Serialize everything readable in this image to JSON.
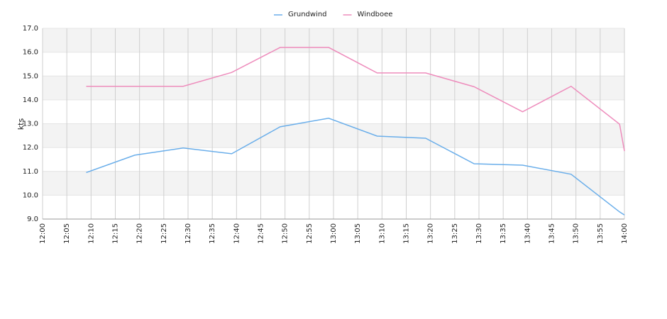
{
  "chart_data": {
    "type": "line",
    "y_label": "kts",
    "x": [
      "12:09",
      "12:19",
      "12:29",
      "12:39",
      "12:49",
      "12:59",
      "13:09",
      "13:19",
      "13:29",
      "13:39",
      "13:49",
      "13:59",
      "14:00"
    ],
    "series": [
      {
        "name": "Grundwind",
        "color": "#6aaeea",
        "values": [
          10.95,
          11.68,
          11.98,
          11.74,
          12.87,
          13.23,
          12.48,
          12.39,
          11.32,
          11.26,
          10.88,
          9.3,
          9.17
        ]
      },
      {
        "name": "Windboee",
        "color": "#ee8cbc",
        "values": [
          14.57,
          14.57,
          14.57,
          15.15,
          16.2,
          16.2,
          15.13,
          15.13,
          14.55,
          13.5,
          14.57,
          12.98,
          11.85
        ]
      }
    ],
    "xlim": [
      "12:00",
      "14:00"
    ],
    "xticks": [
      "12:00",
      "12:05",
      "12:10",
      "12:15",
      "12:20",
      "12:25",
      "12:30",
      "12:35",
      "12:40",
      "12:45",
      "12:50",
      "12:55",
      "13:00",
      "13:05",
      "13:10",
      "13:15",
      "13:20",
      "13:25",
      "13:30",
      "13:35",
      "13:40",
      "13:45",
      "13:50",
      "13:55",
      "14:00"
    ],
    "ylim": [
      9,
      17
    ],
    "yticks": [
      {
        "value": 9,
        "label": "9.0"
      },
      {
        "value": 10,
        "label": "10.0"
      },
      {
        "value": 11,
        "label": "11.0"
      },
      {
        "value": 12,
        "label": "12.0"
      },
      {
        "value": 13,
        "label": "13.0"
      },
      {
        "value": 14,
        "label": "14.0"
      },
      {
        "value": 15,
        "label": "15.0"
      },
      {
        "value": 16,
        "label": "16.0"
      },
      {
        "value": 17,
        "label": "17.0"
      }
    ],
    "grid": true,
    "legend": "top"
  }
}
